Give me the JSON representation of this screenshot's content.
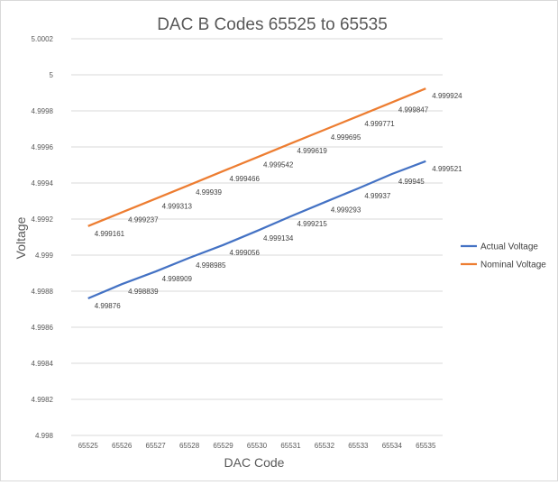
{
  "chart_data": {
    "type": "line",
    "title": "DAC B Codes 65525 to 65535",
    "xlabel": "DAC Code",
    "ylabel": "Voltage",
    "categories": [
      "65525",
      "65526",
      "65527",
      "65528",
      "65529",
      "65530",
      "65531",
      "65532",
      "65533",
      "65534",
      "65535"
    ],
    "ylim": [
      4.998,
      5.0002
    ],
    "yticks": [
      "4.998",
      "4.9982",
      "4.9984",
      "4.9986",
      "4.9988",
      "4.999",
      "4.9992",
      "4.9994",
      "4.9996",
      "4.9998",
      "5",
      "5.0002"
    ],
    "grid": true,
    "legend_position": "right",
    "series": [
      {
        "name": "Actual Voltage",
        "color": "#4472c4",
        "values": [
          4.99876,
          4.998839,
          4.998909,
          4.998985,
          4.999056,
          4.999134,
          4.999215,
          4.999293,
          4.99937,
          4.99945,
          4.999521
        ],
        "labels": [
          "4.99876",
          "4.998839",
          "4.998909",
          "4.998985",
          "4.999056",
          "4.999134",
          "4.999215",
          "4.999293",
          "4.99937",
          "4.99945",
          "4.999521"
        ]
      },
      {
        "name": "Nominal Voltage",
        "color": "#ed7d31",
        "values": [
          4.999161,
          4.999237,
          4.999313,
          4.999389,
          4.999466,
          4.999542,
          4.999619,
          4.999695,
          4.999771,
          4.999847,
          4.999924
        ],
        "labels": [
          "4.999161",
          "4.999237",
          "4.999313",
          "4.99939",
          "4.999466",
          "4.999542",
          "4.999619",
          "4.999695",
          "4.999771",
          "4.999847",
          "4.999924"
        ]
      }
    ]
  }
}
